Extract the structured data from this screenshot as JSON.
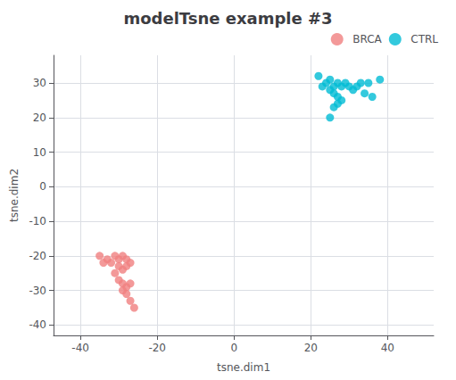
{
  "chart_data": {
    "type": "scatter",
    "title": "modelTsne example #3",
    "xlabel": "tsne.dim1",
    "ylabel": "tsne.dim2",
    "xlim": [
      -47,
      52
    ],
    "ylim": [
      -43,
      38
    ],
    "xticks": [
      -40,
      -20,
      0,
      20,
      40
    ],
    "yticks": [
      -40,
      -30,
      -20,
      -10,
      0,
      10,
      20,
      30
    ],
    "grid": true,
    "legend": "upper right",
    "series": [
      {
        "name": "BRCA",
        "color": "#f08080",
        "x": [
          -35,
          -33,
          -31,
          -34,
          -32,
          -30,
          -29,
          -30,
          -28,
          -31,
          -29,
          -28,
          -27,
          -30,
          -29,
          -28,
          -27,
          -29,
          -28,
          -27,
          -26
        ],
        "y": [
          -20,
          -21,
          -20,
          -22,
          -22,
          -21,
          -20,
          -23,
          -21,
          -25,
          -24,
          -23,
          -22,
          -27,
          -28,
          -29,
          -28,
          -30,
          -31,
          -33,
          -35
        ]
      },
      {
        "name": "CTRL",
        "color": "#00bcd4",
        "x": [
          22,
          24,
          23,
          25,
          26,
          27,
          25,
          28,
          26,
          29,
          30,
          27,
          28,
          32,
          31,
          33,
          35,
          34,
          36,
          38,
          27,
          26,
          25
        ],
        "y": [
          32,
          30,
          29,
          31,
          29,
          30,
          28,
          29,
          27,
          30,
          29,
          26,
          25,
          29,
          28,
          30,
          30,
          27,
          26,
          31,
          24,
          23,
          20
        ]
      }
    ]
  }
}
